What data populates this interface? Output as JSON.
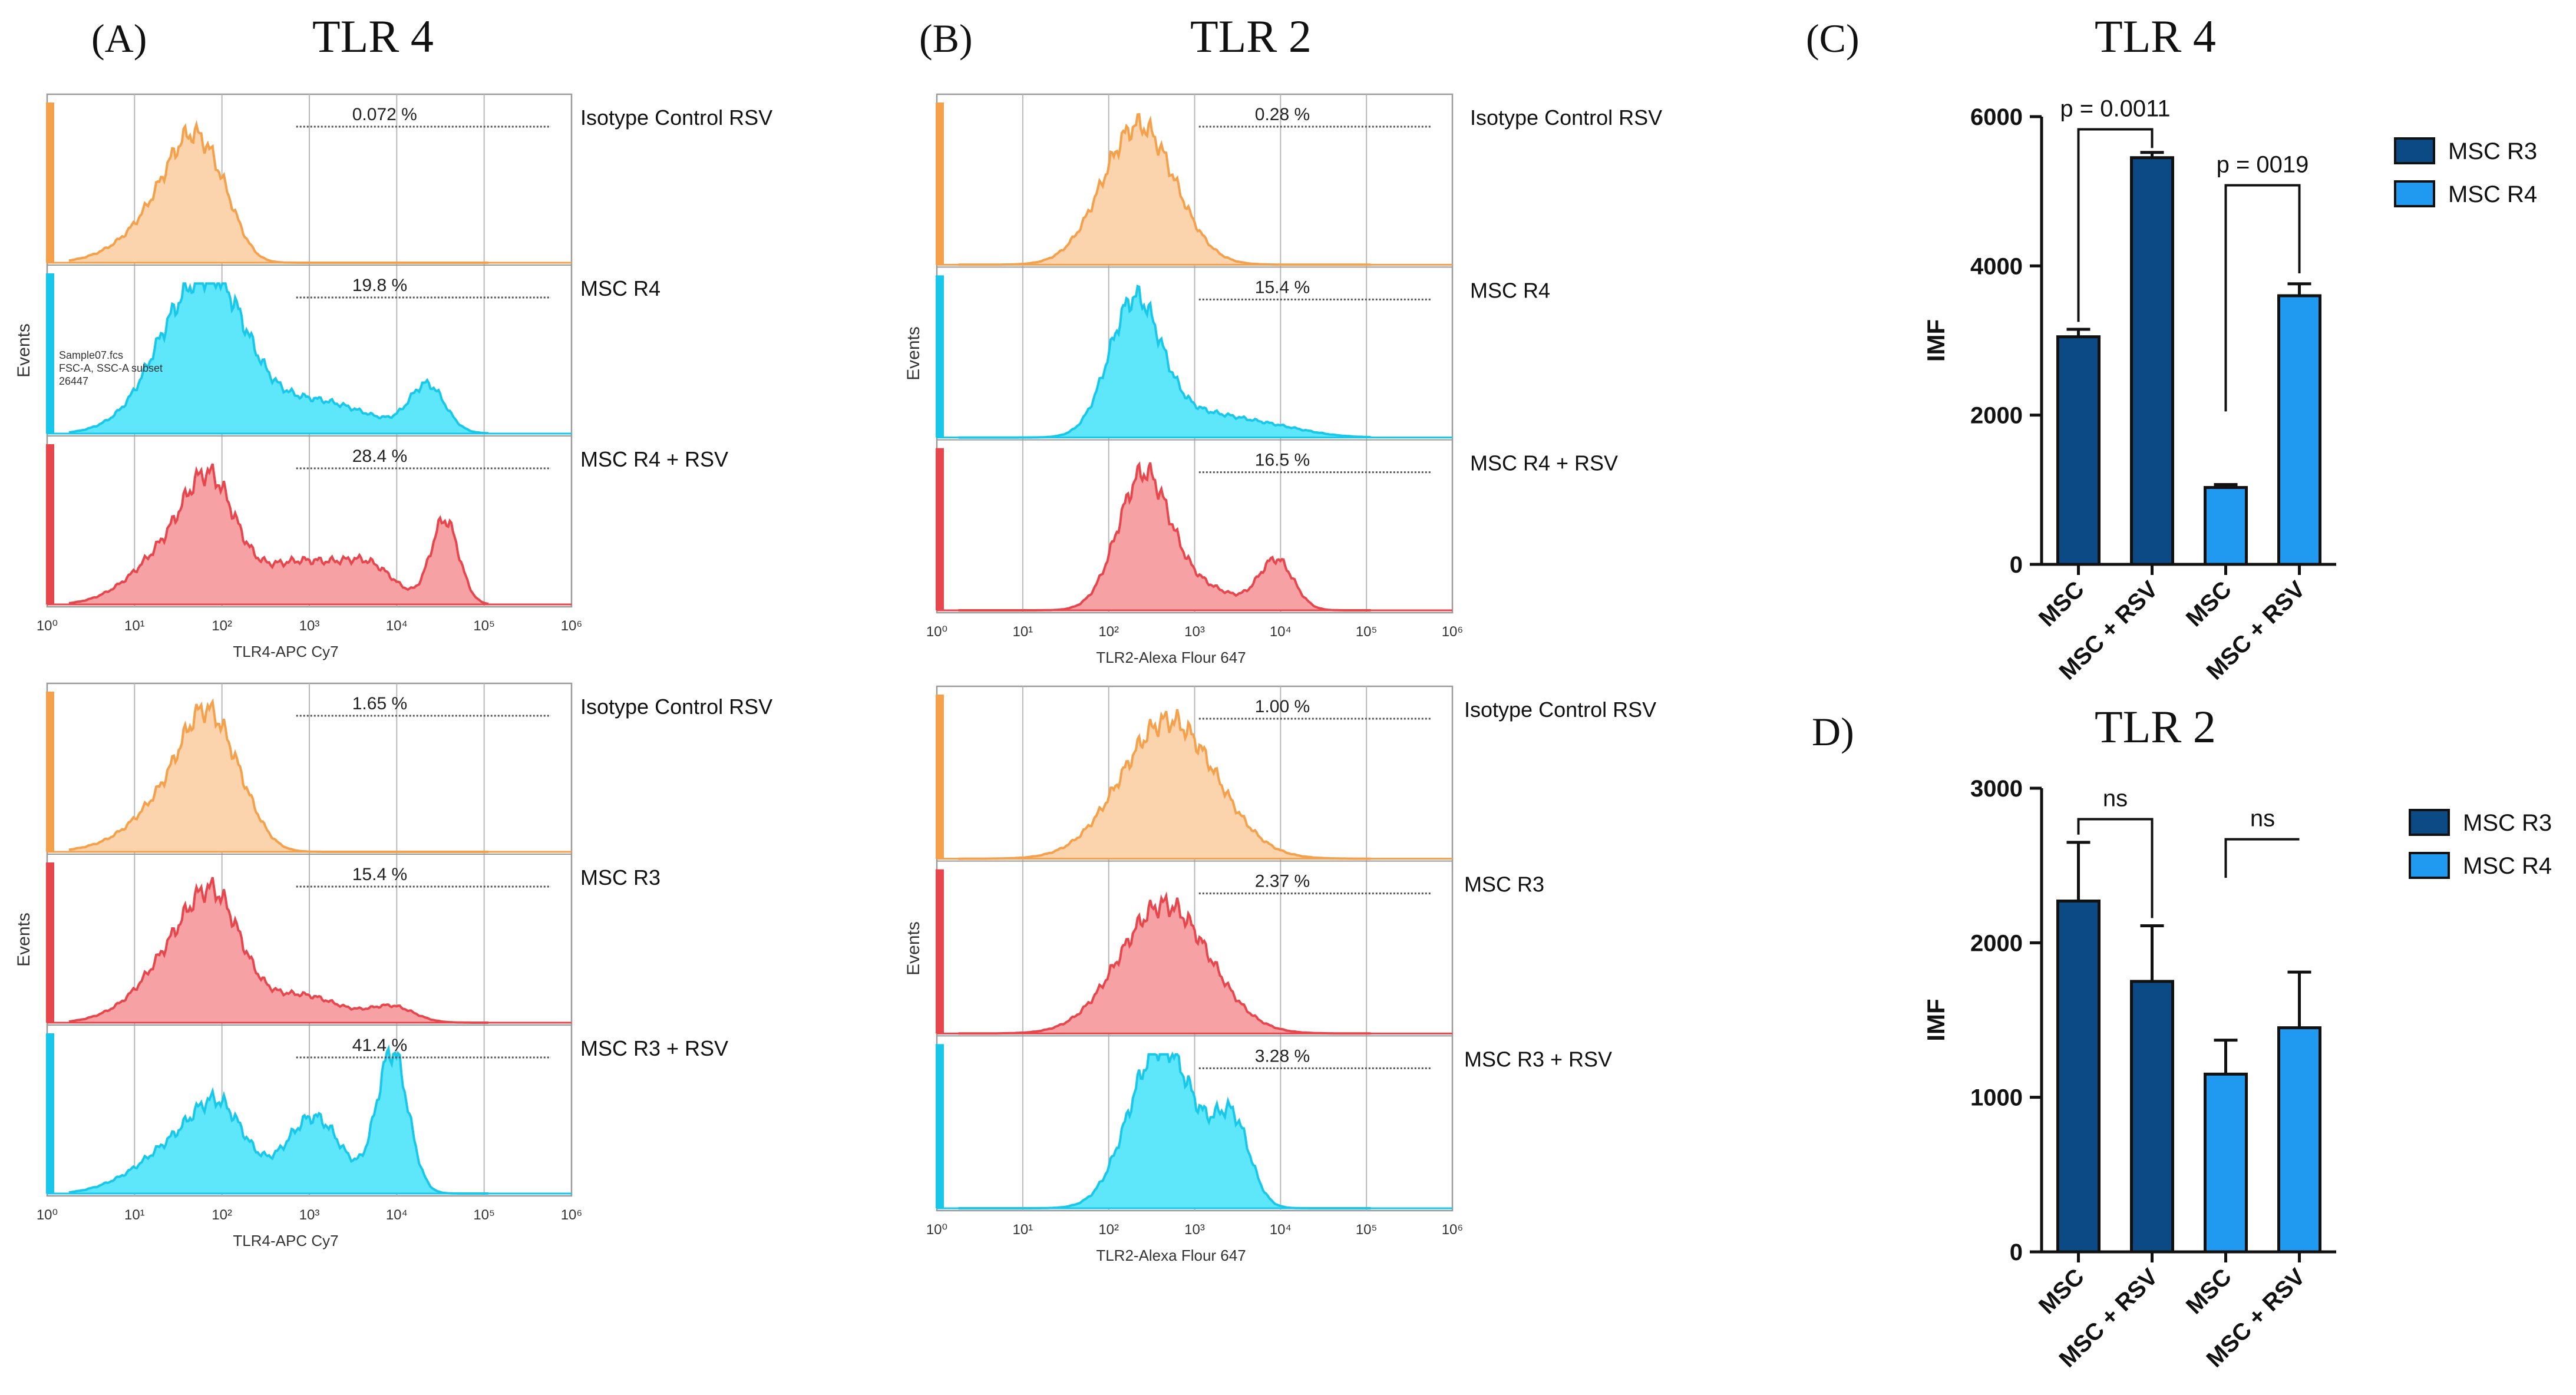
{
  "colors": {
    "orange": "#f5a04a",
    "orange_fill": "#fbd3ac",
    "cyan": "#18c8ea",
    "cyan_fill": "#5ee6fb",
    "red": "#e8464d",
    "red_fill": "#f6a2a4",
    "dark_bar": "#0b4a84",
    "light_bar": "#1f9af0",
    "grid": "#b8b8b8"
  },
  "chart_data": [
    {
      "id": "A_top",
      "type": "histogram",
      "panel_label": "(A)",
      "title": "TLR 4",
      "xlabel": "TLR4-APC Cy7",
      "ylabel": "Events",
      "x_ticks": [
        "10⁰",
        "10¹",
        "10²",
        "10³",
        "10⁴",
        "10⁵",
        "10⁶"
      ],
      "gate_start_decade": 2.85,
      "annotation": "Sample07.fcs\nFSC-A, SSC-A subset\n26447",
      "series": [
        {
          "name": "Isotype Control RSV",
          "pct": "0.072 %",
          "color": "orange",
          "peaks": [
            [
              1.7,
              0.7,
              0.28
            ],
            [
              1.3,
              0.25,
              0.3
            ],
            [
              2.05,
              0.15,
              0.2
            ],
            [
              0.9,
              0.08,
              0.35
            ]
          ]
        },
        {
          "name": "MSC R4",
          "pct": "19.8 %",
          "color": "cyan",
          "peaks": [
            [
              1.9,
              0.92,
              0.38
            ],
            [
              1.35,
              0.35,
              0.3
            ],
            [
              3.0,
              0.22,
              0.65
            ],
            [
              4.35,
              0.3,
              0.2
            ],
            [
              0.85,
              0.06,
              0.3
            ]
          ]
        },
        {
          "name": "MSC R4 + RSV",
          "pct": "28.4 %",
          "color": "red",
          "peaks": [
            [
              1.85,
              0.78,
              0.3
            ],
            [
              1.3,
              0.25,
              0.3
            ],
            [
              2.9,
              0.28,
              0.5
            ],
            [
              4.55,
              0.55,
              0.16
            ],
            [
              3.7,
              0.2,
              0.3
            ],
            [
              0.85,
              0.06,
              0.3
            ]
          ]
        }
      ]
    },
    {
      "id": "A_bottom",
      "type": "histogram",
      "xlabel": "TLR4-APC Cy7",
      "ylabel": "Events",
      "x_ticks": [
        "10⁰",
        "10¹",
        "10²",
        "10³",
        "10⁴",
        "10⁵",
        "10⁶"
      ],
      "gate_start_decade": 2.85,
      "series": [
        {
          "name": "Isotype Control RSV",
          "pct": "1.65 %",
          "color": "orange",
          "peaks": [
            [
              1.8,
              0.8,
              0.28
            ],
            [
              1.3,
              0.25,
              0.3
            ],
            [
              2.2,
              0.25,
              0.25
            ],
            [
              0.85,
              0.06,
              0.35
            ]
          ]
        },
        {
          "name": "MSC R3",
          "pct": "15.4 %",
          "color": "red",
          "peaks": [
            [
              1.9,
              0.8,
              0.32
            ],
            [
              1.35,
              0.3,
              0.3
            ],
            [
              2.9,
              0.18,
              0.45
            ],
            [
              3.95,
              0.1,
              0.25
            ],
            [
              0.85,
              0.06,
              0.3
            ]
          ]
        },
        {
          "name": "MSC R3 + RSV",
          "pct": "41.4 %",
          "color": "cyan",
          "peaks": [
            [
              1.95,
              0.58,
              0.32
            ],
            [
              3.05,
              0.5,
              0.32
            ],
            [
              3.95,
              0.92,
              0.18
            ],
            [
              1.35,
              0.22,
              0.3
            ],
            [
              0.85,
              0.06,
              0.3
            ]
          ]
        }
      ]
    },
    {
      "id": "B_top",
      "type": "histogram",
      "panel_label": "(B)",
      "title": "TLR 2",
      "xlabel": "TLR2-Alexa Flour 647",
      "ylabel": "Events",
      "x_ticks": [
        "10⁰",
        "10¹",
        "10²",
        "10³",
        "10⁴",
        "10⁵",
        "10⁶"
      ],
      "gate_start_decade": 3.05,
      "series": [
        {
          "name": "Isotype Control RSV",
          "pct": "0.28 %",
          "color": "orange",
          "peaks": [
            [
              2.35,
              0.9,
              0.42
            ]
          ]
        },
        {
          "name": "MSC R4",
          "pct": "15.4 %",
          "color": "cyan",
          "peaks": [
            [
              2.3,
              0.85,
              0.3
            ],
            [
              3.0,
              0.15,
              0.5
            ],
            [
              3.9,
              0.06,
              0.45
            ]
          ]
        },
        {
          "name": "MSC R4 + RSV",
          "pct": "16.5 %",
          "color": "red",
          "peaks": [
            [
              2.4,
              0.85,
              0.3
            ],
            [
              3.05,
              0.15,
              0.4
            ],
            [
              3.95,
              0.32,
              0.2
            ]
          ]
        }
      ]
    },
    {
      "id": "B_bottom",
      "type": "histogram",
      "xlabel": "TLR2-Alexa Flour 647",
      "ylabel": "Events",
      "x_ticks": [
        "10⁰",
        "10¹",
        "10²",
        "10³",
        "10⁴",
        "10⁵",
        "10⁶"
      ],
      "gate_start_decade": 3.05,
      "series": [
        {
          "name": "Isotype Control RSV",
          "pct": "1.00 %",
          "color": "orange",
          "peaks": [
            [
              2.7,
              0.88,
              0.55
            ]
          ]
        },
        {
          "name": "MSC R3",
          "pct": "2.37 %",
          "color": "red",
          "peaks": [
            [
              2.65,
              0.82,
              0.52
            ]
          ]
        },
        {
          "name": "MSC R3 + RSV",
          "pct": "3.28 %",
          "color": "cyan",
          "peaks": [
            [
              2.55,
              0.88,
              0.35
            ],
            [
              3.45,
              0.48,
              0.2
            ],
            [
              2.95,
              0.28,
              0.35
            ]
          ]
        }
      ]
    },
    {
      "id": "C",
      "type": "bar",
      "panel_label": "(C)",
      "title": "TLR 4",
      "ylabel": "IMF",
      "ylim": [
        0,
        6000
      ],
      "yticks": [
        0,
        2000,
        4000,
        6000
      ],
      "categories": [
        "MSC",
        "MSC + RSV",
        "MSC",
        "MSC + RSV"
      ],
      "values": [
        3050,
        5450,
        1030,
        3600
      ],
      "errors": [
        100,
        70,
        40,
        160
      ],
      "groups": [
        "MSC R3",
        "MSC R3",
        "MSC R4",
        "MSC R4"
      ],
      "legend": [
        "MSC R3",
        "MSC R4"
      ],
      "comparisons": [
        {
          "label": "p = 0.0011",
          "from": 0,
          "to": 1,
          "level": 5830,
          "drop_left": 3250,
          "drop_right": 5580
        },
        {
          "label": "p = 0019",
          "from": 2,
          "to": 3,
          "level": 5080,
          "drop_left": 2050,
          "drop_right": 3900
        }
      ]
    },
    {
      "id": "D",
      "type": "bar",
      "panel_label": "D)",
      "title": "TLR 2",
      "ylabel": "IMF",
      "ylim": [
        0,
        3000
      ],
      "yticks": [
        0,
        1000,
        2000,
        3000
      ],
      "categories": [
        "MSC",
        "MSC + RSV",
        "MSC",
        "MSC + RSV"
      ],
      "values": [
        2270,
        1750,
        1150,
        1450
      ],
      "errors": [
        380,
        360,
        220,
        360
      ],
      "groups": [
        "MSC R3",
        "MSC R3",
        "MSC R4",
        "MSC R4"
      ],
      "legend": [
        "MSC R3",
        "MSC R4"
      ],
      "comparisons": [
        {
          "label": "ns",
          "from": 0,
          "to": 1,
          "level": 2800,
          "drop_left": 2700,
          "drop_right": 2160
        },
        {
          "label": "ns",
          "from": 2,
          "to": 3,
          "level": 2670,
          "drop_left": 2420,
          "drop_right": 2670
        }
      ]
    }
  ]
}
